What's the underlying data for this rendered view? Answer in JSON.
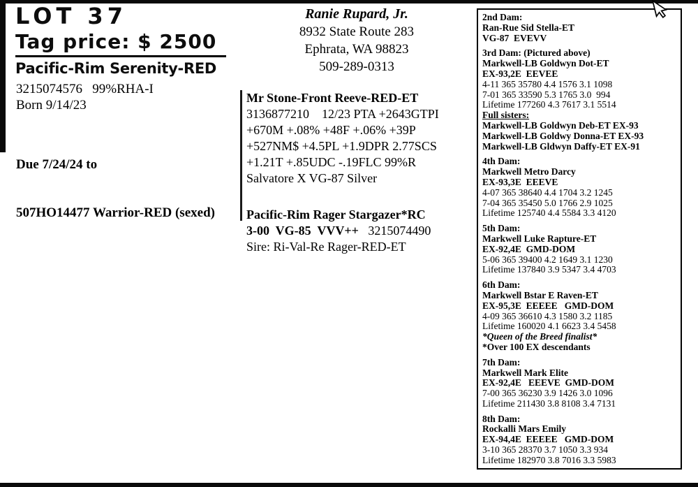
{
  "lot": {
    "title": "LOT 37",
    "tag_price": "Tag price: $ 2500",
    "animal_name": "Pacific-Rim Serenity-RED",
    "registration": "3215074576   99%RHA-I",
    "born": "Born 9/14/23",
    "due_line1": "Due 7/24/24 to",
    "due_line2": "507HO14477 Warrior-RED (sexed)"
  },
  "consignor": {
    "name": "Ranie Rupard, Jr.",
    "address1": "8932 State Route 283",
    "address2": "Ephrata, WA 98823",
    "phone": "509-289-0313"
  },
  "sire": {
    "name": "Mr Stone-Front Reeve-RED-ET",
    "stat_lines": [
      "3136877210    12/23 PTA +2643GTPI",
      "+670M +.08% +48F +.06% +39P",
      "+527NM$ +4.5PL +1.9DPR 2.77SCS",
      "+1.21T +.85UDC -.19FLC 99%R",
      "Salvatore X VG-87 Silver"
    ]
  },
  "dam": {
    "name": "Pacific-Rim Rager Stargazer*RC",
    "score_bold": "3-00  VG-85  VVV++",
    "score_plain": "   3215074490",
    "sire_line": "Sire: Ri-Val-Re Rager-RED-ET"
  },
  "pedigree": {
    "sections": [
      {
        "id": "2nd-dam",
        "lines": [
          {
            "text": "2nd Dam:",
            "style": "b"
          },
          {
            "text": "Ran-Rue Sid Stella-ET",
            "style": "b"
          },
          {
            "text": "VG-87  EVEVV",
            "style": "b"
          }
        ]
      },
      {
        "id": "3rd-dam",
        "lines": [
          {
            "text": "3rd Dam: (Pictured above)",
            "style": "b"
          },
          {
            "text": "Markwell-LB Goldwyn Dot-ET",
            "style": "b"
          },
          {
            "text": "EX-93,2E  EEVEE",
            "style": "b"
          },
          {
            "text": "4-11 365 35780 4.4 1576 3.1 1098",
            "style": "r"
          },
          {
            "text": "7-01 365 33590 5.3 1765 3.0  994",
            "style": "r"
          },
          {
            "text": "Lifetime 177260 4.3 7617 3.1 5514",
            "style": "r"
          },
          {
            "text": "Full sisters:",
            "style": "bu"
          },
          {
            "text": "Markwell-LB Goldwyn Deb-ET EX-93",
            "style": "b"
          },
          {
            "text": "Markwell-LB Goldwy Donna-ET EX-93",
            "style": "b"
          },
          {
            "text": "Markwell-LB Gldwyn Daffy-ET EX-91",
            "style": "b"
          }
        ]
      },
      {
        "id": "4th-dam",
        "lines": [
          {
            "text": "4th Dam:",
            "style": "b"
          },
          {
            "text": "Markwell Metro Darcy",
            "style": "b"
          },
          {
            "text": "EX-93,3E  EEEVE",
            "style": "b"
          },
          {
            "text": "4-07 365 38640 4.4 1704 3.2 1245",
            "style": "r"
          },
          {
            "text": "7-04 365 35450 5.0 1766 2.9 1025",
            "style": "r"
          },
          {
            "text": "Lifetime 125740 4.4 5584 3.3 4120",
            "style": "r"
          }
        ]
      },
      {
        "id": "5th-dam",
        "lines": [
          {
            "text": "5th Dam:",
            "style": "b"
          },
          {
            "text": "Markwell Luke Rapture-ET",
            "style": "b"
          },
          {
            "text": "EX-92,4E  GMD-DOM",
            "style": "b"
          },
          {
            "text": "5-06 365 39400 4.2 1649 3.1 1230",
            "style": "r"
          },
          {
            "text": "Lifetime 137840 3.9 5347 3.4 4703",
            "style": "r"
          }
        ]
      },
      {
        "id": "6th-dam",
        "lines": [
          {
            "text": "6th Dam:",
            "style": "b"
          },
          {
            "text": "Markwell Bstar E Raven-ET",
            "style": "b"
          },
          {
            "text": "EX-95,3E  EEEEE   GMD-DOM",
            "style": "b"
          },
          {
            "text": "4-09 365 36610 4.3 1580 3.2 1185",
            "style": "r"
          },
          {
            "text": "Lifetime 160020 4.1 6623 3.4 5458",
            "style": "r"
          },
          {
            "text": "*Queen of the Breed finalist*",
            "style": "bi"
          },
          {
            "text": "*Over 100 EX descendants",
            "style": "b"
          }
        ]
      },
      {
        "id": "7th-dam",
        "lines": [
          {
            "text": "7th Dam:",
            "style": "b"
          },
          {
            "text": "Markwell Mark Elite",
            "style": "b"
          },
          {
            "text": "EX-92,4E   EEEVE  GMD-DOM",
            "style": "b"
          },
          {
            "text": "7-00 365 36230 3.9 1426 3.0 1096",
            "style": "r"
          },
          {
            "text": "Lifetime 211430 3.8 8108 3.4 7131",
            "style": "r"
          }
        ]
      },
      {
        "id": "8th-dam",
        "lines": [
          {
            "text": "8th Dam:",
            "style": "b"
          },
          {
            "text": "Rockalli Mars Emily",
            "style": "b"
          },
          {
            "text": "EX-94,4E  EEEEE   GMD-DOM",
            "style": "b"
          },
          {
            "text": "3-10 365 28370 3.7 1050 3.3 934",
            "style": "r"
          },
          {
            "text": "Lifetime 182970 3.8 7016 3.3 5983",
            "style": "r"
          }
        ]
      }
    ]
  }
}
